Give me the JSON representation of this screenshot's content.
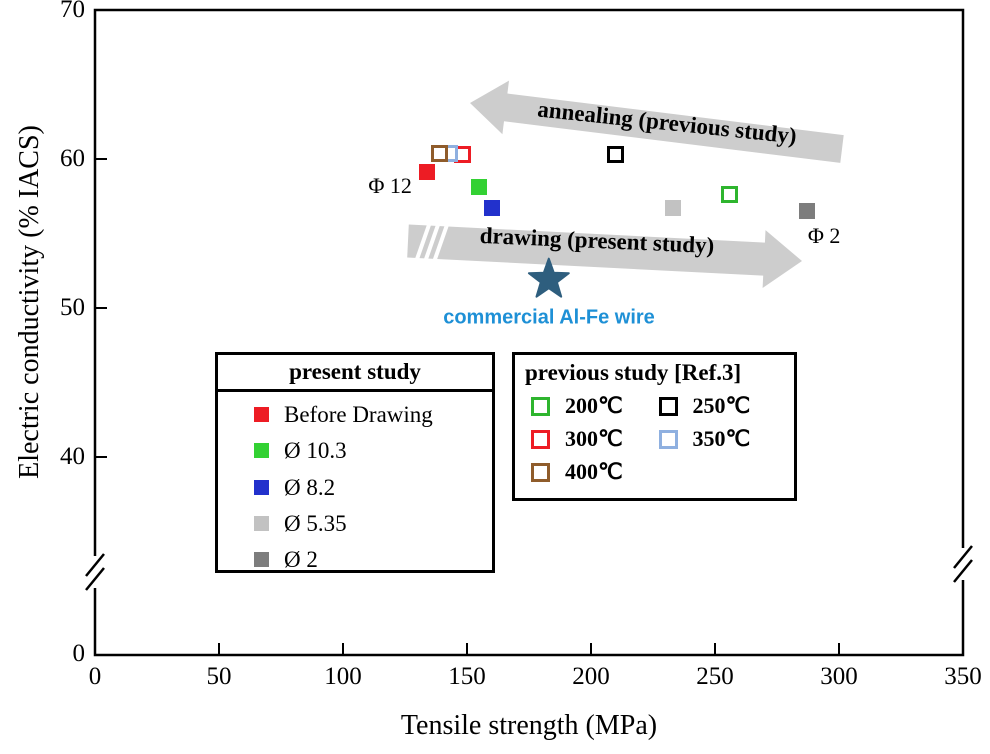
{
  "chart_data": {
    "type": "scatter",
    "title": "",
    "xlabel": "Tensile strength (MPa)",
    "ylabel": "Electric conductivity (% IACS)",
    "xlim": [
      0,
      350
    ],
    "ylim_shown": [
      40,
      70
    ],
    "x_ticks": [
      0,
      50,
      100,
      150,
      200,
      250,
      300,
      350
    ],
    "y_ticks_linear": [
      70,
      60,
      50,
      40
    ],
    "y_zero_label": "0",
    "axis_break": true,
    "grid": false,
    "series": [
      {
        "name": "Before Drawing",
        "group": "present",
        "marker": "square-filled",
        "color": "#ed1c24",
        "points": [
          [
            134,
            59.1
          ]
        ]
      },
      {
        "name": "Ø 10.3",
        "group": "present",
        "marker": "square-filled",
        "color": "#33d133",
        "points": [
          [
            155,
            58.1
          ]
        ]
      },
      {
        "name": "Ø 8.2",
        "group": "present",
        "marker": "square-filled",
        "color": "#2231cc",
        "points": [
          [
            160,
            56.7
          ]
        ]
      },
      {
        "name": "Ø 5.35",
        "group": "present",
        "marker": "square-filled",
        "color": "#c2c2c2",
        "points": [
          [
            233,
            56.7
          ]
        ]
      },
      {
        "name": "Ø 2",
        "group": "present",
        "marker": "square-filled",
        "color": "#7d7d7d",
        "points": [
          [
            287,
            56.5
          ]
        ]
      },
      {
        "name": "200℃",
        "group": "previous",
        "marker": "square-open",
        "color": "#2eb52e",
        "points": [
          [
            256,
            57.6
          ]
        ]
      },
      {
        "name": "250℃",
        "group": "previous",
        "marker": "square-open",
        "color": "#000000",
        "points": [
          [
            210,
            60.3
          ]
        ]
      },
      {
        "name": "300℃",
        "group": "previous",
        "marker": "square-open",
        "color": "#ed1c24",
        "points": [
          [
            148,
            60.3
          ]
        ]
      },
      {
        "name": "350℃",
        "group": "previous",
        "marker": "square-open",
        "color": "#8fb0e0",
        "points": [
          [
            143,
            60.4
          ]
        ]
      },
      {
        "name": "400℃",
        "group": "previous",
        "marker": "square-open",
        "color": "#8f5c2b",
        "points": [
          [
            139,
            60.35
          ]
        ]
      }
    ],
    "annotations": [
      {
        "text": "Φ 12",
        "x": 119,
        "y": 58.2
      },
      {
        "text": "Φ 2",
        "x": 294,
        "y": 54.8
      }
    ],
    "star": {
      "x": 183,
      "y": 51.9,
      "color": "#2e5e7e",
      "label": "commercial Al-Fe wire",
      "label_color": "#1e90d6"
    },
    "arrows": [
      {
        "label": "annealing (previous study)",
        "direction": "left"
      },
      {
        "label": "drawing (present study)",
        "direction": "right"
      }
    ],
    "arrow_color": "#cdcdcd"
  },
  "legend_present": {
    "title": "present study"
  },
  "legend_previous": {
    "title": "previous study [Ref.3]"
  }
}
